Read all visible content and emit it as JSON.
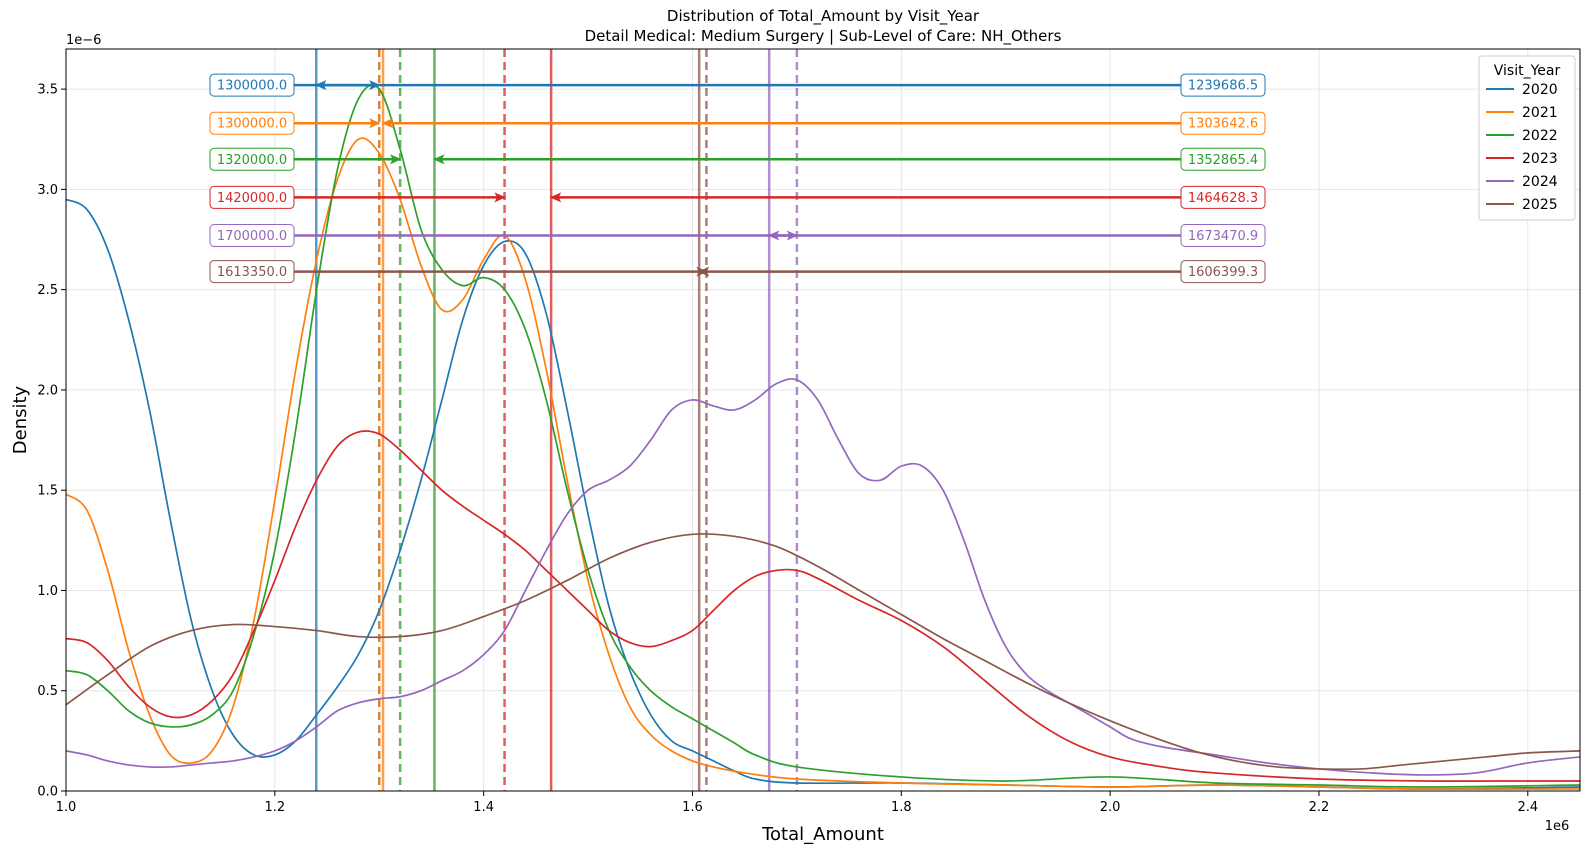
{
  "chart_data": {
    "type": "line",
    "title": "Distribution of Total_Amount by Visit_Year",
    "subtitle": "Detail Medical: Medium Surgery | Sub-Level of Care: NH_Others",
    "xlabel": "Total_Amount",
    "ylabel": "Density",
    "x_offset_label": "1e6",
    "y_offset_label": "1e−6",
    "xlim": [
      1.0,
      2.45
    ],
    "ylim": [
      0,
      3.7
    ],
    "x_ticks": [
      "1.0",
      "1.2",
      "1.4",
      "1.6",
      "1.8",
      "2.0",
      "2.2",
      "2.4"
    ],
    "y_ticks": [
      "0.0",
      "0.5",
      "1.0",
      "1.5",
      "2.0",
      "2.5",
      "3.0",
      "3.5"
    ],
    "grid": true,
    "legend": {
      "title": "Visit_Year",
      "position": "top-right"
    },
    "series": [
      {
        "name": "2020",
        "color": "#1f77b4",
        "median": 1300000.0,
        "mean": 1239686.5,
        "median_label": "1300000.0",
        "mean_label": "1239686.5",
        "arrow_y": 3.52,
        "points": [
          [
            1.0,
            2.95
          ],
          [
            1.02,
            2.9
          ],
          [
            1.04,
            2.7
          ],
          [
            1.06,
            2.35
          ],
          [
            1.08,
            1.9
          ],
          [
            1.1,
            1.35
          ],
          [
            1.12,
            0.85
          ],
          [
            1.14,
            0.5
          ],
          [
            1.16,
            0.28
          ],
          [
            1.18,
            0.18
          ],
          [
            1.2,
            0.18
          ],
          [
            1.22,
            0.25
          ],
          [
            1.24,
            0.38
          ],
          [
            1.26,
            0.52
          ],
          [
            1.28,
            0.68
          ],
          [
            1.3,
            0.9
          ],
          [
            1.32,
            1.2
          ],
          [
            1.34,
            1.55
          ],
          [
            1.36,
            1.95
          ],
          [
            1.38,
            2.35
          ],
          [
            1.4,
            2.62
          ],
          [
            1.42,
            2.74
          ],
          [
            1.44,
            2.68
          ],
          [
            1.46,
            2.38
          ],
          [
            1.48,
            1.9
          ],
          [
            1.5,
            1.38
          ],
          [
            1.52,
            0.92
          ],
          [
            1.54,
            0.6
          ],
          [
            1.56,
            0.38
          ],
          [
            1.58,
            0.25
          ],
          [
            1.6,
            0.2
          ],
          [
            1.62,
            0.15
          ],
          [
            1.64,
            0.1
          ],
          [
            1.66,
            0.06
          ],
          [
            1.7,
            0.04
          ],
          [
            1.8,
            0.04
          ],
          [
            1.9,
            0.03
          ],
          [
            2.0,
            0.02
          ],
          [
            2.1,
            0.03
          ],
          [
            2.2,
            0.02
          ],
          [
            2.3,
            0.01
          ],
          [
            2.45,
            0.02
          ]
        ]
      },
      {
        "name": "2021",
        "color": "#ff7f0e",
        "median": 1300000.0,
        "mean": 1303642.6,
        "median_label": "1300000.0",
        "mean_label": "1303642.6",
        "arrow_y": 3.33,
        "points": [
          [
            1.0,
            1.48
          ],
          [
            1.02,
            1.4
          ],
          [
            1.04,
            1.1
          ],
          [
            1.06,
            0.7
          ],
          [
            1.08,
            0.38
          ],
          [
            1.1,
            0.18
          ],
          [
            1.12,
            0.14
          ],
          [
            1.14,
            0.2
          ],
          [
            1.16,
            0.42
          ],
          [
            1.18,
            0.85
          ],
          [
            1.2,
            1.45
          ],
          [
            1.22,
            2.1
          ],
          [
            1.24,
            2.65
          ],
          [
            1.26,
            3.05
          ],
          [
            1.28,
            3.25
          ],
          [
            1.3,
            3.18
          ],
          [
            1.32,
            2.95
          ],
          [
            1.34,
            2.62
          ],
          [
            1.36,
            2.4
          ],
          [
            1.38,
            2.45
          ],
          [
            1.4,
            2.65
          ],
          [
            1.42,
            2.77
          ],
          [
            1.44,
            2.55
          ],
          [
            1.46,
            2.1
          ],
          [
            1.48,
            1.55
          ],
          [
            1.5,
            1.05
          ],
          [
            1.52,
            0.68
          ],
          [
            1.54,
            0.42
          ],
          [
            1.56,
            0.28
          ],
          [
            1.58,
            0.2
          ],
          [
            1.6,
            0.15
          ],
          [
            1.62,
            0.12
          ],
          [
            1.65,
            0.09
          ],
          [
            1.7,
            0.06
          ],
          [
            1.8,
            0.04
          ],
          [
            1.9,
            0.03
          ],
          [
            2.0,
            0.02
          ],
          [
            2.1,
            0.03
          ],
          [
            2.2,
            0.02
          ],
          [
            2.3,
            0.01
          ],
          [
            2.45,
            0.01
          ]
        ]
      },
      {
        "name": "2022",
        "color": "#2ca02c",
        "median": 1320000.0,
        "mean": 1352865.4,
        "median_label": "1320000.0",
        "mean_label": "1352865.4",
        "arrow_y": 3.15,
        "points": [
          [
            1.0,
            0.6
          ],
          [
            1.02,
            0.58
          ],
          [
            1.04,
            0.5
          ],
          [
            1.06,
            0.4
          ],
          [
            1.08,
            0.34
          ],
          [
            1.1,
            0.32
          ],
          [
            1.12,
            0.33
          ],
          [
            1.14,
            0.38
          ],
          [
            1.16,
            0.5
          ],
          [
            1.18,
            0.78
          ],
          [
            1.2,
            1.2
          ],
          [
            1.22,
            1.8
          ],
          [
            1.24,
            2.5
          ],
          [
            1.26,
            3.1
          ],
          [
            1.28,
            3.45
          ],
          [
            1.3,
            3.5
          ],
          [
            1.32,
            3.2
          ],
          [
            1.34,
            2.8
          ],
          [
            1.36,
            2.6
          ],
          [
            1.38,
            2.52
          ],
          [
            1.4,
            2.56
          ],
          [
            1.42,
            2.5
          ],
          [
            1.44,
            2.3
          ],
          [
            1.46,
            1.95
          ],
          [
            1.48,
            1.5
          ],
          [
            1.5,
            1.1
          ],
          [
            1.52,
            0.8
          ],
          [
            1.54,
            0.62
          ],
          [
            1.56,
            0.5
          ],
          [
            1.58,
            0.42
          ],
          [
            1.6,
            0.36
          ],
          [
            1.62,
            0.3
          ],
          [
            1.64,
            0.24
          ],
          [
            1.66,
            0.18
          ],
          [
            1.7,
            0.12
          ],
          [
            1.8,
            0.07
          ],
          [
            1.9,
            0.05
          ],
          [
            2.0,
            0.07
          ],
          [
            2.1,
            0.04
          ],
          [
            2.2,
            0.03
          ],
          [
            2.3,
            0.02
          ],
          [
            2.45,
            0.03
          ]
        ]
      },
      {
        "name": "2023",
        "color": "#d62728",
        "median": 1420000.0,
        "mean": 1464628.3,
        "median_label": "1420000.0",
        "mean_label": "1464628.3",
        "arrow_y": 2.96,
        "points": [
          [
            1.0,
            0.76
          ],
          [
            1.02,
            0.74
          ],
          [
            1.04,
            0.65
          ],
          [
            1.06,
            0.52
          ],
          [
            1.08,
            0.42
          ],
          [
            1.1,
            0.37
          ],
          [
            1.12,
            0.38
          ],
          [
            1.14,
            0.45
          ],
          [
            1.16,
            0.58
          ],
          [
            1.18,
            0.8
          ],
          [
            1.2,
            1.05
          ],
          [
            1.22,
            1.32
          ],
          [
            1.24,
            1.55
          ],
          [
            1.26,
            1.72
          ],
          [
            1.28,
            1.79
          ],
          [
            1.3,
            1.78
          ],
          [
            1.32,
            1.7
          ],
          [
            1.34,
            1.6
          ],
          [
            1.36,
            1.5
          ],
          [
            1.38,
            1.42
          ],
          [
            1.4,
            1.35
          ],
          [
            1.42,
            1.28
          ],
          [
            1.44,
            1.2
          ],
          [
            1.46,
            1.1
          ],
          [
            1.48,
            1.0
          ],
          [
            1.5,
            0.9
          ],
          [
            1.52,
            0.8
          ],
          [
            1.54,
            0.74
          ],
          [
            1.56,
            0.72
          ],
          [
            1.58,
            0.75
          ],
          [
            1.6,
            0.8
          ],
          [
            1.62,
            0.9
          ],
          [
            1.64,
            1.0
          ],
          [
            1.66,
            1.07
          ],
          [
            1.68,
            1.1
          ],
          [
            1.7,
            1.1
          ],
          [
            1.72,
            1.06
          ],
          [
            1.76,
            0.95
          ],
          [
            1.8,
            0.85
          ],
          [
            1.84,
            0.72
          ],
          [
            1.88,
            0.55
          ],
          [
            1.92,
            0.38
          ],
          [
            1.96,
            0.25
          ],
          [
            2.0,
            0.17
          ],
          [
            2.05,
            0.12
          ],
          [
            2.1,
            0.09
          ],
          [
            2.2,
            0.06
          ],
          [
            2.3,
            0.05
          ],
          [
            2.4,
            0.05
          ],
          [
            2.45,
            0.05
          ]
        ]
      },
      {
        "name": "2024",
        "color": "#9467bd",
        "median": 1700000.0,
        "mean": 1673470.9,
        "median_label": "1700000.0",
        "mean_label": "1673470.9",
        "arrow_y": 2.77,
        "points": [
          [
            1.0,
            0.2
          ],
          [
            1.02,
            0.18
          ],
          [
            1.04,
            0.15
          ],
          [
            1.06,
            0.13
          ],
          [
            1.08,
            0.12
          ],
          [
            1.1,
            0.12
          ],
          [
            1.12,
            0.13
          ],
          [
            1.14,
            0.14
          ],
          [
            1.16,
            0.15
          ],
          [
            1.18,
            0.17
          ],
          [
            1.2,
            0.2
          ],
          [
            1.22,
            0.25
          ],
          [
            1.24,
            0.32
          ],
          [
            1.26,
            0.4
          ],
          [
            1.28,
            0.44
          ],
          [
            1.3,
            0.46
          ],
          [
            1.32,
            0.47
          ],
          [
            1.34,
            0.5
          ],
          [
            1.36,
            0.55
          ],
          [
            1.38,
            0.6
          ],
          [
            1.4,
            0.68
          ],
          [
            1.42,
            0.8
          ],
          [
            1.44,
            1.0
          ],
          [
            1.46,
            1.2
          ],
          [
            1.48,
            1.38
          ],
          [
            1.5,
            1.5
          ],
          [
            1.52,
            1.55
          ],
          [
            1.54,
            1.62
          ],
          [
            1.56,
            1.75
          ],
          [
            1.58,
            1.9
          ],
          [
            1.6,
            1.95
          ],
          [
            1.62,
            1.92
          ],
          [
            1.64,
            1.9
          ],
          [
            1.66,
            1.95
          ],
          [
            1.68,
            2.03
          ],
          [
            1.7,
            2.05
          ],
          [
            1.72,
            1.95
          ],
          [
            1.74,
            1.75
          ],
          [
            1.76,
            1.58
          ],
          [
            1.78,
            1.55
          ],
          [
            1.8,
            1.62
          ],
          [
            1.82,
            1.62
          ],
          [
            1.84,
            1.5
          ],
          [
            1.86,
            1.25
          ],
          [
            1.88,
            0.95
          ],
          [
            1.9,
            0.72
          ],
          [
            1.92,
            0.58
          ],
          [
            1.94,
            0.5
          ],
          [
            1.96,
            0.44
          ],
          [
            1.98,
            0.38
          ],
          [
            2.0,
            0.32
          ],
          [
            2.02,
            0.26
          ],
          [
            2.05,
            0.22
          ],
          [
            2.1,
            0.18
          ],
          [
            2.15,
            0.14
          ],
          [
            2.2,
            0.11
          ],
          [
            2.25,
            0.09
          ],
          [
            2.3,
            0.08
          ],
          [
            2.35,
            0.09
          ],
          [
            2.4,
            0.14
          ],
          [
            2.45,
            0.17
          ]
        ]
      },
      {
        "name": "2025",
        "color": "#8c564b",
        "median": 1613350.0,
        "mean": 1606399.3,
        "median_label": "1613350.0",
        "mean_label": "1606399.3",
        "arrow_y": 2.59,
        "points": [
          [
            1.0,
            0.43
          ],
          [
            1.04,
            0.58
          ],
          [
            1.08,
            0.72
          ],
          [
            1.12,
            0.8
          ],
          [
            1.16,
            0.83
          ],
          [
            1.2,
            0.82
          ],
          [
            1.24,
            0.8
          ],
          [
            1.28,
            0.77
          ],
          [
            1.32,
            0.77
          ],
          [
            1.36,
            0.8
          ],
          [
            1.4,
            0.87
          ],
          [
            1.44,
            0.95
          ],
          [
            1.48,
            1.05
          ],
          [
            1.52,
            1.16
          ],
          [
            1.56,
            1.24
          ],
          [
            1.6,
            1.28
          ],
          [
            1.64,
            1.27
          ],
          [
            1.68,
            1.22
          ],
          [
            1.72,
            1.12
          ],
          [
            1.76,
            1.0
          ],
          [
            1.8,
            0.88
          ],
          [
            1.84,
            0.76
          ],
          [
            1.88,
            0.65
          ],
          [
            1.92,
            0.54
          ],
          [
            1.96,
            0.44
          ],
          [
            2.0,
            0.35
          ],
          [
            2.04,
            0.27
          ],
          [
            2.08,
            0.2
          ],
          [
            2.12,
            0.15
          ],
          [
            2.16,
            0.12
          ],
          [
            2.2,
            0.11
          ],
          [
            2.24,
            0.11
          ],
          [
            2.28,
            0.13
          ],
          [
            2.32,
            0.15
          ],
          [
            2.36,
            0.17
          ],
          [
            2.4,
            0.19
          ],
          [
            2.45,
            0.2
          ]
        ]
      }
    ]
  }
}
